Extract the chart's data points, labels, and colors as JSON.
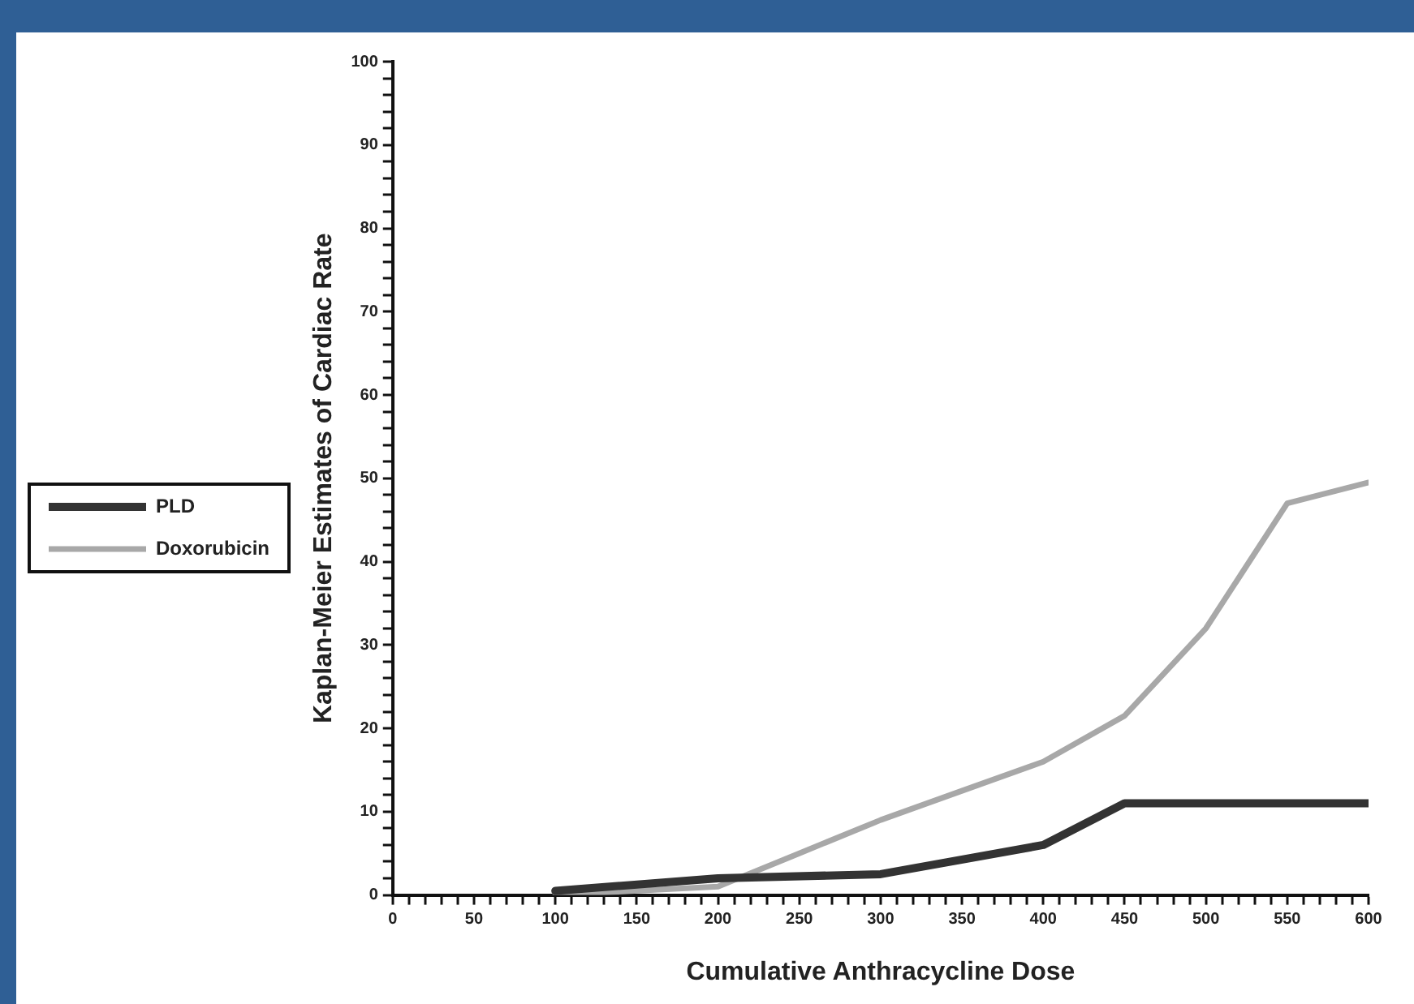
{
  "chart_data": {
    "type": "line",
    "xlabel": "Cumulative Anthracycline Dose",
    "ylabel": "Kaplan-Meier Estimates of Cardiac Rate",
    "x": [
      100,
      200,
      300,
      400,
      450,
      500,
      550,
      600
    ],
    "series": [
      {
        "name": "PLD",
        "color": "#333333",
        "values": [
          0.5,
          2,
          2.5,
          6,
          11,
          11,
          11,
          11
        ]
      },
      {
        "name": "Doxorubicin",
        "color": "#a8a8a8",
        "x": [
          100,
          200,
          250,
          300,
          350,
          400,
          450,
          500,
          550,
          600
        ],
        "values": [
          0,
          1,
          5,
          9,
          12.5,
          16,
          21.5,
          32,
          47,
          49.5
        ]
      }
    ],
    "xlim": [
      0,
      600
    ],
    "ylim": [
      0,
      100
    ],
    "xticks": [
      0,
      {
        "value": 10,
        "label": null
      },
      {
        "value": 20,
        "label": null
      },
      {
        "value": 30,
        "label": null
      },
      {
        "value": 40,
        "label": null
      },
      50,
      {
        "value": 60,
        "label": null
      },
      {
        "value": 70,
        "label": null
      },
      {
        "value": 80,
        "label": null
      },
      {
        "value": 90,
        "label": null
      },
      100,
      {
        "value": 110,
        "label": null
      },
      {
        "value": 120,
        "label": null
      },
      {
        "value": 130,
        "label": null
      },
      {
        "value": 140,
        "label": null
      },
      150,
      {
        "value": 160,
        "label": null
      },
      {
        "value": 170,
        "label": null
      },
      {
        "value": 180,
        "label": null
      },
      {
        "value": 190,
        "label": null
      },
      200,
      {
        "value": 210,
        "label": null
      },
      {
        "value": 220,
        "label": null
      },
      {
        "value": 230,
        "label": null
      },
      {
        "value": 240,
        "label": null
      },
      250,
      {
        "value": 260,
        "label": null
      },
      {
        "value": 270,
        "label": null
      },
      {
        "value": 280,
        "label": null
      },
      {
        "value": 290,
        "label": null
      },
      300,
      {
        "value": 310,
        "label": null
      },
      {
        "value": 320,
        "label": null
      },
      {
        "value": 330,
        "label": null
      },
      {
        "value": 340,
        "label": null
      },
      350,
      {
        "value": 360,
        "label": null
      },
      {
        "value": 370,
        "label": null
      },
      {
        "value": 380,
        "label": null
      },
      {
        "value": 390,
        "label": null
      },
      400,
      {
        "value": 410,
        "label": null
      },
      {
        "value": 420,
        "label": null
      },
      {
        "value": 430,
        "label": null
      },
      {
        "value": 440,
        "label": null
      },
      450,
      {
        "value": 460,
        "label": null
      },
      {
        "value": 470,
        "label": null
      },
      {
        "value": 480,
        "label": null
      },
      {
        "value": 490,
        "label": null
      },
      500,
      {
        "value": 510,
        "label": null
      },
      {
        "value": 520,
        "label": null
      },
      {
        "value": 530,
        "label": null
      },
      {
        "value": 540,
        "label": null
      },
      550,
      {
        "value": 560,
        "label": null
      },
      {
        "value": 570,
        "label": null
      },
      {
        "value": 580,
        "label": null
      },
      {
        "value": 590,
        "label": null
      },
      600
    ],
    "yticks": [
      0,
      {
        "value": 2,
        "label": null
      },
      {
        "value": 4,
        "label": null
      },
      {
        "value": 6,
        "label": null
      },
      {
        "value": 8,
        "label": null
      },
      10,
      {
        "value": 12,
        "label": null
      },
      {
        "value": 14,
        "label": null
      },
      {
        "value": 16,
        "label": null
      },
      {
        "value": 18,
        "label": null
      },
      20,
      {
        "value": 22,
        "label": null
      },
      {
        "value": 24,
        "label": null
      },
      {
        "value": 26,
        "label": null
      },
      {
        "value": 28,
        "label": null
      },
      30,
      {
        "value": 32,
        "label": null
      },
      {
        "value": 34,
        "label": null
      },
      {
        "value": 36,
        "label": null
      },
      {
        "value": 38,
        "label": null
      },
      40,
      {
        "value": 42,
        "label": null
      },
      {
        "value": 44,
        "label": null
      },
      {
        "value": 46,
        "label": null
      },
      {
        "value": 48,
        "label": null
      },
      50,
      {
        "value": 52,
        "label": null
      },
      {
        "value": 54,
        "label": null
      },
      {
        "value": 56,
        "label": null
      },
      {
        "value": 58,
        "label": null
      },
      60,
      {
        "value": 62,
        "label": null
      },
      {
        "value": 64,
        "label": null
      },
      {
        "value": 66,
        "label": null
      },
      {
        "value": 68,
        "label": null
      },
      70,
      {
        "value": 72,
        "label": null
      },
      {
        "value": 74,
        "label": null
      },
      {
        "value": 76,
        "label": null
      },
      {
        "value": 78,
        "label": null
      },
      80,
      {
        "value": 82,
        "label": null
      },
      {
        "value": 84,
        "label": null
      },
      {
        "value": 86,
        "label": null
      },
      {
        "value": 88,
        "label": null
      },
      90,
      {
        "value": 92,
        "label": null
      },
      {
        "value": 94,
        "label": null
      },
      {
        "value": 96,
        "label": null
      },
      {
        "value": 98,
        "label": null
      },
      100
    ],
    "grid": false,
    "legend": "center left",
    "marker": "none",
    "line_style": "solid"
  }
}
